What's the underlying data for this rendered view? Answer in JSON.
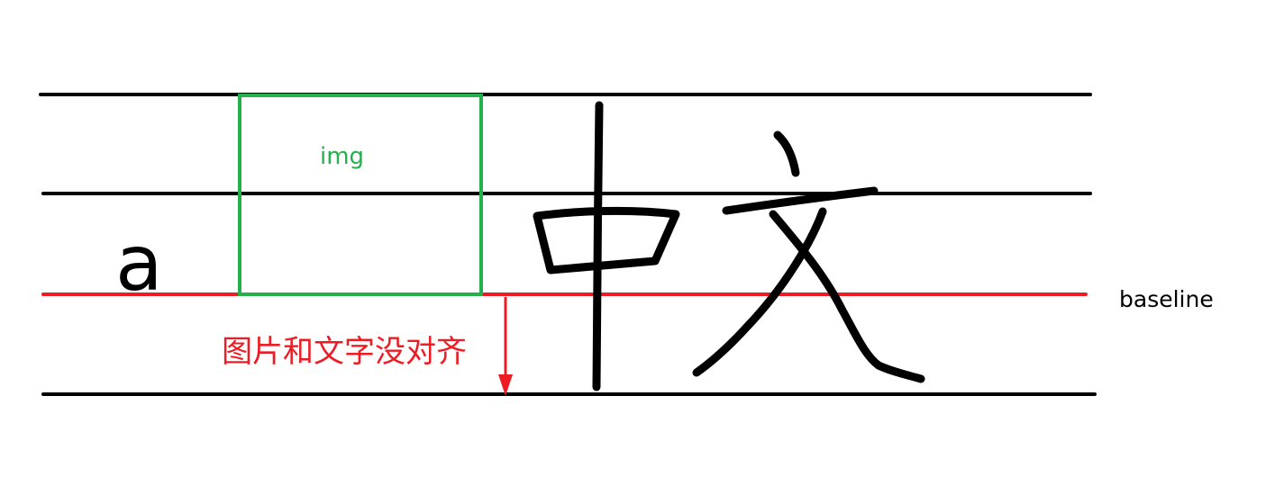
{
  "labels": {
    "letter": "a",
    "image_box": "img",
    "baseline": "baseline",
    "note": "图片和文字没对齐"
  },
  "colors": {
    "guide_line": "#000000",
    "baseline_line": "#ed1c24",
    "image_box": "#22b14c",
    "note": "#ed1c24",
    "handwriting": "#000000"
  },
  "handwritten_glyphs": "中文"
}
